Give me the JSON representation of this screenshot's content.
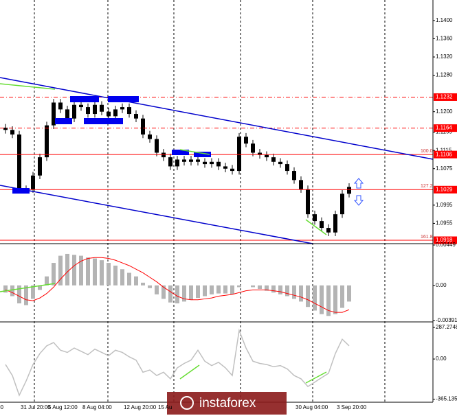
{
  "chart_data": [
    {
      "type": "candlestick",
      "categories": [
        "00",
        null,
        null,
        null,
        "31 Jul 20:00",
        null,
        null,
        null,
        "5 Aug 12:00",
        null,
        null,
        null,
        null,
        "8 Aug 04:00",
        null,
        null,
        null,
        null,
        null,
        "12 Aug 20:00",
        null,
        null,
        null,
        null,
        "15 Au",
        null,
        null,
        null,
        null,
        null,
        null,
        null,
        null,
        null,
        null,
        null,
        null,
        null,
        null,
        null,
        null,
        null,
        null,
        null,
        "30 Aug 04:00",
        null,
        null,
        null,
        null,
        null,
        "3 Sep 20:00"
      ],
      "open": [
        1.1165,
        1.116,
        1.115,
        1.103,
        1.103,
        1.106,
        1.11,
        1.117,
        1.122,
        1.1205,
        1.1185,
        1.1215,
        1.121,
        1.1195,
        1.1215,
        1.12,
        1.119,
        1.1205,
        1.121,
        1.1195,
        1.1185,
        1.115,
        1.114,
        1.111,
        1.11,
        1.108,
        1.1095,
        1.109,
        1.1095,
        1.109,
        1.1085,
        1.109,
        1.108,
        1.1075,
        1.107,
        1.1145,
        1.113,
        1.111,
        1.1105,
        1.11,
        1.109,
        1.1085,
        1.107,
        1.105,
        1.103,
        1.0975,
        1.096,
        1.0945,
        1.0935,
        1.0975,
        1.102
      ],
      "high": [
        1.1173,
        1.1168,
        1.1158,
        1.1038,
        1.1068,
        1.1108,
        1.1178,
        1.1228,
        1.1228,
        1.1213,
        1.1223,
        1.1223,
        1.1218,
        1.1223,
        1.1223,
        1.1208,
        1.1213,
        1.1218,
        1.1218,
        1.1203,
        1.1193,
        1.1158,
        1.1148,
        1.1118,
        1.1108,
        1.1103,
        1.1103,
        1.1103,
        1.1103,
        1.1098,
        1.1098,
        1.1098,
        1.1088,
        1.1083,
        1.1153,
        1.1153,
        1.1138,
        1.1118,
        1.1113,
        1.1108,
        1.1098,
        1.1093,
        1.1078,
        1.1058,
        1.1038,
        1.0983,
        1.0968,
        1.0953,
        1.0983,
        1.1028,
        1.1043
      ],
      "low": [
        1.1152,
        1.1142,
        1.1022,
        1.1022,
        1.1022,
        1.1052,
        1.1092,
        1.1162,
        1.1197,
        1.1177,
        1.1177,
        1.1202,
        1.1187,
        1.1187,
        1.1192,
        1.1182,
        1.1182,
        1.1197,
        1.1187,
        1.1177,
        1.1142,
        1.1132,
        1.1102,
        1.1092,
        1.1072,
        1.1072,
        1.1082,
        1.1082,
        1.1082,
        1.1077,
        1.1077,
        1.1072,
        1.1067,
        1.1062,
        1.1062,
        1.1122,
        1.1102,
        1.1097,
        1.1092,
        1.1082,
        1.1077,
        1.1062,
        1.1042,
        1.1022,
        1.0967,
        1.0952,
        1.0937,
        1.0927,
        1.0927,
        1.0967,
        1.1012
      ],
      "close": [
        1.116,
        1.115,
        1.103,
        1.103,
        1.106,
        1.11,
        1.117,
        1.122,
        1.1205,
        1.1185,
        1.1215,
        1.121,
        1.1195,
        1.1215,
        1.12,
        1.119,
        1.1205,
        1.121,
        1.1195,
        1.1185,
        1.115,
        1.114,
        1.111,
        1.11,
        1.108,
        1.1095,
        1.109,
        1.1095,
        1.109,
        1.1085,
        1.109,
        1.108,
        1.1075,
        1.107,
        1.1145,
        1.113,
        1.111,
        1.1105,
        1.11,
        1.109,
        1.1085,
        1.107,
        1.105,
        1.103,
        1.0975,
        1.096,
        1.0945,
        1.0935,
        1.0975,
        1.102,
        1.1035
      ],
      "color": "#000000",
      "ylim": [
        1.0915,
        1.1445
      ],
      "yticks": [
        {
          "value": 1.14,
          "label": "1.1400"
        },
        {
          "value": 1.136,
          "label": "1.1360"
        },
        {
          "value": 1.132,
          "label": "1.1320"
        },
        {
          "value": 1.128,
          "label": "1.1280"
        },
        {
          "value": 1.12,
          "label": "1.1200"
        },
        1.1155,
        1.1115,
        1.1075,
        1.0995,
        1.0955
      ],
      "levels": [
        {
          "value": 1.1232,
          "style": "dashdot"
        },
        {
          "value": 1.1164,
          "style": "dashdot"
        },
        {
          "value": 1.1106,
          "style": "solid",
          "fib": "100.0"
        },
        {
          "value": 1.1029,
          "style": "solid",
          "fib": "127.2"
        },
        {
          "value": 1.0918,
          "style": "solid",
          "fib": "161.8"
        }
      ],
      "level_color": "#ff0000"
    },
    {
      "type": "macd",
      "histogram": [
        -0.0008,
        -0.0012,
        -0.002,
        -0.0022,
        -0.0015,
        -0.0005,
        0.001,
        0.0025,
        0.0033,
        0.0035,
        0.0034,
        0.0033,
        0.0031,
        0.003,
        0.0028,
        0.0025,
        0.0022,
        0.0018,
        0.0014,
        0.001,
        0.0003,
        -0.0003,
        -0.001,
        -0.0015,
        -0.0019,
        -0.002,
        -0.0018,
        -0.0016,
        -0.0014,
        -0.0012,
        -0.001,
        -0.0009,
        -0.0009,
        -0.001,
        -0.0002,
        0.0,
        -0.0002,
        -0.0004,
        -0.0006,
        -0.0008,
        -0.001,
        -0.0012,
        -0.0015,
        -0.0018,
        -0.0024,
        -0.0028,
        -0.0032,
        -0.0034,
        -0.0032,
        -0.0025,
        -0.0018
      ],
      "signal": [
        -0.0005,
        -0.0008,
        -0.0012,
        -0.0016,
        -0.0017,
        -0.0014,
        -0.0009,
        -0.0002,
        0.0007,
        0.0015,
        0.0022,
        0.0027,
        0.003,
        0.0031,
        0.0031,
        0.003,
        0.0028,
        0.0025,
        0.0022,
        0.0018,
        0.0014,
        0.0009,
        0.0004,
        -0.0002,
        -0.0007,
        -0.0012,
        -0.0015,
        -0.0016,
        -0.0016,
        -0.0015,
        -0.0014,
        -0.0012,
        -0.0011,
        -0.001,
        -0.0008,
        -0.0006,
        -0.0005,
        -0.0005,
        -0.0005,
        -0.0006,
        -0.0007,
        -0.0009,
        -0.0011,
        -0.0013,
        -0.0016,
        -0.002,
        -0.0024,
        -0.0028,
        -0.003,
        -0.003,
        -0.0027
      ],
      "histogram_color": "#b4b4b4",
      "signal_color": "#ff0000",
      "ylim": [
        -0.00391,
        0.00449
      ],
      "yticks": [
        0.00449,
        {
          "value": 0,
          "label": "0.00"
        },
        -0.00391
      ]
    },
    {
      "type": "line",
      "values": [
        -50,
        -150,
        -330,
        -200,
        -50,
        50,
        120,
        150,
        80,
        60,
        100,
        70,
        40,
        90,
        60,
        30,
        80,
        60,
        20,
        -10,
        -120,
        -100,
        -150,
        -120,
        -180,
        -80,
        -40,
        -10,
        80,
        -20,
        -60,
        -30,
        -80,
        -150,
        260,
        100,
        -20,
        -40,
        -50,
        -70,
        -60,
        -90,
        -150,
        -180,
        -250,
        -210,
        -170,
        -130,
        50,
        180,
        120
      ],
      "color": "#c0c0c0",
      "ylim": [
        -474,
        325
      ],
      "yticks": [
        287.2748,
        {
          "value": 0,
          "label": "0.00"
        },
        -365.1357
      ]
    }
  ],
  "watermark": "instaforex"
}
